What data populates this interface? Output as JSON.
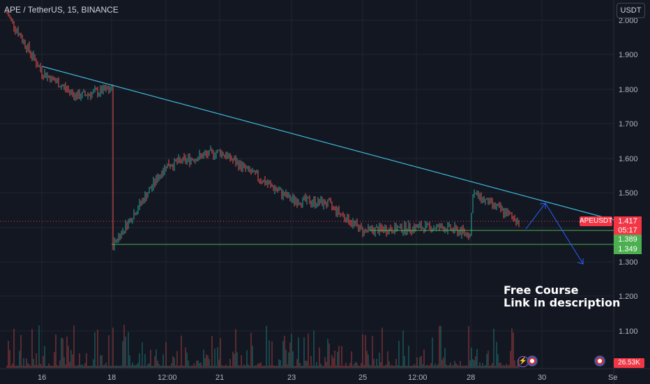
{
  "header": {
    "symbol_line": "APE / TetherUS, 15, BINANCE",
    "currency_button": "USDT"
  },
  "price_axis": {
    "labels": [
      "2.000",
      "1.900",
      "1.800",
      "1.700",
      "1.600",
      "1.500",
      "1.300",
      "1.200",
      "1.100"
    ]
  },
  "time_axis": {
    "labels": [
      "16",
      "18",
      "12:00",
      "21",
      "23",
      "25",
      "12:00",
      "28",
      "30",
      "Se"
    ]
  },
  "price_tags": {
    "symbol": "APEUSDT",
    "current": "1.417",
    "countdown": "05:17",
    "level1": "1.389",
    "level2": "1.349"
  },
  "volume_tag": "26.53K",
  "annotation": {
    "line1": "Free Course",
    "line2": "Link in description"
  },
  "colors": {
    "background": "#131722",
    "up": "#26a69a",
    "down": "#ef5350",
    "trendline": "#3fb7d9",
    "support": "#4caf50",
    "arrow": "#2962ff",
    "price_tag_red": "#f23645",
    "price_tag_green": "#4caf50"
  },
  "chart_data": {
    "type": "candlestick",
    "symbol": "APE / TetherUS",
    "interval": "15",
    "exchange": "BINANCE",
    "ylim": [
      1.0,
      2.03
    ],
    "price_ticks": [
      2.0,
      1.9,
      1.8,
      1.7,
      1.6,
      1.5,
      1.3,
      1.2,
      1.1
    ],
    "approx_price_path": [
      {
        "x": "15",
        "price": 2.02
      },
      {
        "x": "16",
        "price": 1.85
      },
      {
        "x": "17",
        "price": 1.78
      },
      {
        "x": "18",
        "price": 1.8
      },
      {
        "x": "18",
        "price": 1.35
      },
      {
        "x": "18 12:00",
        "price": 1.58
      },
      {
        "x": "21",
        "price": 1.62
      },
      {
        "x": "22",
        "price": 1.55
      },
      {
        "x": "23",
        "price": 1.48
      },
      {
        "x": "24",
        "price": 1.47
      },
      {
        "x": "25",
        "price": 1.39
      },
      {
        "x": "26",
        "price": 1.4
      },
      {
        "x": "27",
        "price": 1.4
      },
      {
        "x": "28",
        "price": 1.38
      },
      {
        "x": "28",
        "price": 1.5
      },
      {
        "x": "29",
        "price": 1.417
      }
    ],
    "last_price": 1.417,
    "support_levels": [
      1.389,
      1.349
    ],
    "last_volume": "26.53K"
  }
}
